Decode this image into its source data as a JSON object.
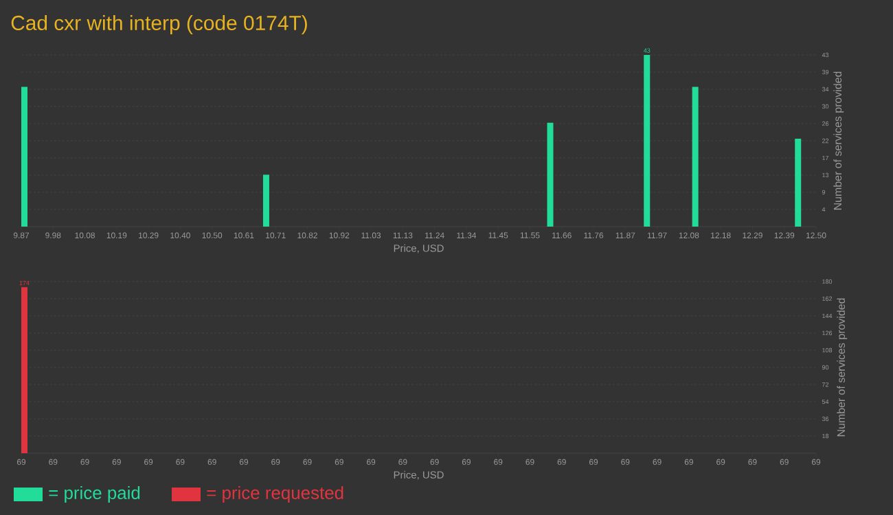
{
  "chart_data": [
    {
      "type": "bar",
      "title": "Cad cxr with interp (code 0174T)",
      "xlabel": "Price, USD",
      "ylabel": "Number of services provided",
      "x": [
        9.87,
        10.67,
        11.61,
        11.93,
        12.09,
        12.43
      ],
      "series": [
        {
          "name": "= price paid",
          "color": "#22dc9a",
          "values": [
            35,
            13,
            26,
            43,
            35,
            22
          ],
          "value_labels": [
            null,
            null,
            null,
            "43",
            null,
            null
          ]
        }
      ],
      "xlim": [
        9.87,
        12.5
      ],
      "xticks": [
        9.87,
        {
          "value": 9.9752,
          "label": "9.98"
        },
        {
          "value": 10.0804,
          "label": "10.08"
        },
        {
          "value": 10.1856,
          "label": "10.19"
        },
        {
          "value": 10.2908,
          "label": "10.29"
        },
        {
          "value": 10.396,
          "label": "10.40"
        },
        {
          "value": 10.5012,
          "label": "10.50"
        },
        {
          "value": 10.6064,
          "label": "10.61"
        },
        {
          "value": 10.7116,
          "label": "10.71"
        },
        {
          "value": 10.8168,
          "label": "10.82"
        },
        {
          "value": 10.922,
          "label": "10.92"
        },
        {
          "value": 11.0272,
          "label": "11.03"
        },
        {
          "value": 11.1324,
          "label": "11.13"
        },
        {
          "value": 11.2376,
          "label": "11.24"
        },
        {
          "value": 11.3428,
          "label": "11.34"
        },
        {
          "value": 11.448,
          "label": "11.45"
        },
        {
          "value": 11.5532,
          "label": "11.55"
        },
        {
          "value": 11.6584,
          "label": "11.66"
        },
        {
          "value": 11.7636,
          "label": "11.76"
        },
        {
          "value": 11.8688,
          "label": "11.87"
        },
        {
          "value": 11.974,
          "label": "11.97"
        },
        {
          "value": 12.0792,
          "label": "12.08"
        },
        {
          "value": 12.1844,
          "label": "12.18"
        },
        {
          "value": 12.2896,
          "label": "12.29"
        },
        {
          "value": 12.3948,
          "label": "12.39"
        },
        {
          "value": 12.5,
          "label": "12.50"
        }
      ],
      "ylim": [
        0,
        43
      ],
      "yticks": [
        {
          "value": 4.3,
          "label": "4"
        },
        {
          "value": 8.6,
          "label": "9"
        },
        {
          "value": 12.9,
          "label": "13"
        },
        {
          "value": 17.2,
          "label": "17"
        },
        {
          "value": 21.5,
          "label": "22"
        },
        {
          "value": 25.8,
          "label": "26"
        },
        {
          "value": 30.1,
          "label": "30"
        },
        {
          "value": 34.4,
          "label": "34"
        },
        {
          "value": 38.7,
          "label": "39"
        },
        43
      ],
      "grid": "y",
      "legend": "bottom left"
    },
    {
      "type": "bar",
      "xlabel": "Price, USD",
      "ylabel": "Number of services provided",
      "categories": [
        "69",
        "69",
        "69",
        "69",
        "69",
        "69",
        "69",
        "69",
        "69",
        "69",
        "69",
        "69",
        "69",
        "69",
        "69",
        "69",
        "69",
        "69",
        "69",
        "69",
        "69",
        "69",
        "69",
        "69",
        "69",
        "69"
      ],
      "series": [
        {
          "name": "= price requested",
          "color": "#e0343f",
          "values": [
            174,
            null,
            null,
            null,
            null,
            null,
            null,
            null,
            null,
            null,
            null,
            null,
            null,
            null,
            null,
            null,
            null,
            null,
            null,
            null,
            null,
            null,
            null,
            null,
            null,
            null
          ],
          "value_labels": [
            "174",
            null,
            null,
            null,
            null,
            null,
            null,
            null,
            null,
            null,
            null,
            null,
            null,
            null,
            null,
            null,
            null,
            null,
            null,
            null,
            null,
            null,
            null,
            null,
            null,
            null
          ]
        }
      ],
      "ylim": [
        0,
        180
      ],
      "yticks": [
        18,
        36,
        54,
        72,
        90,
        108,
        126,
        144,
        162,
        180
      ],
      "grid": "y",
      "legend": "bottom left"
    }
  ]
}
